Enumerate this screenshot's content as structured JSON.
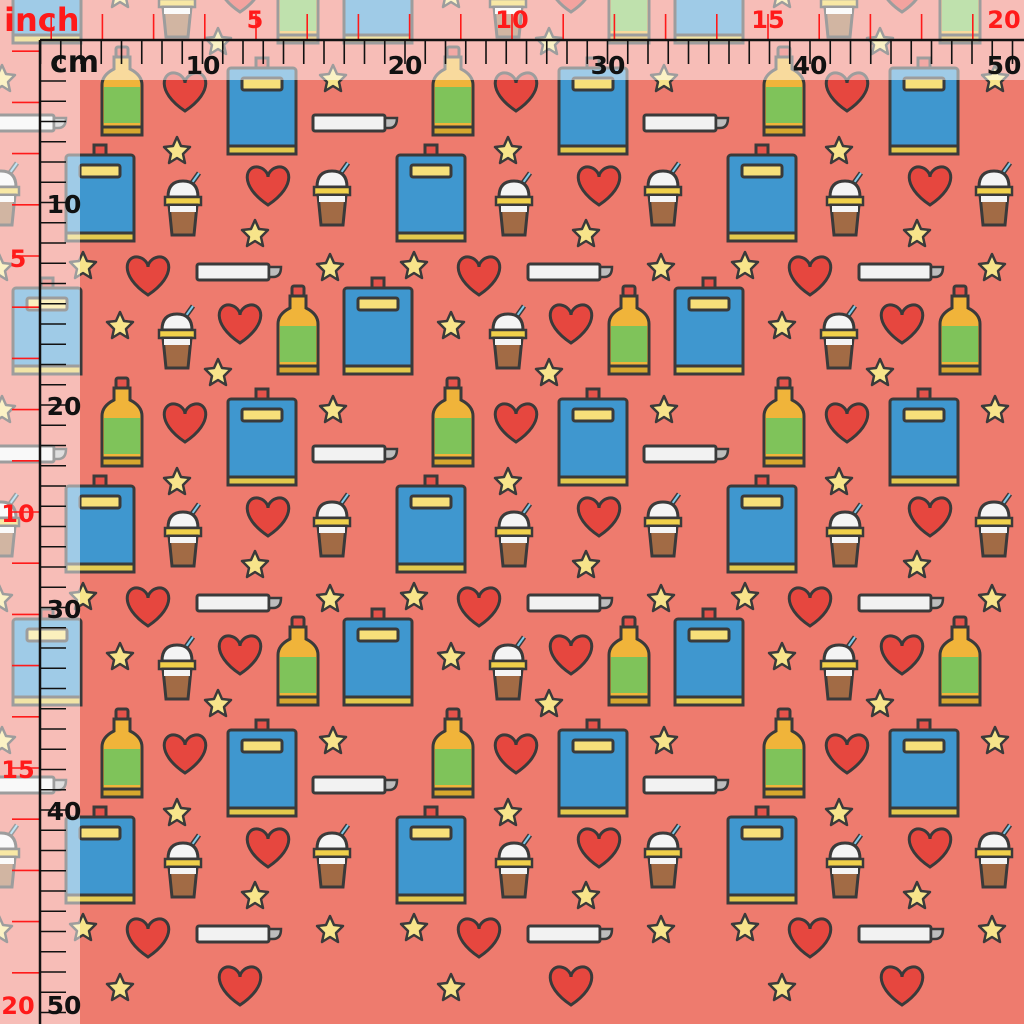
{
  "colors": {
    "fabric_background": "#ee7b6e",
    "jar_blue": "#3f97cf",
    "bottle_green": "#7fc35a",
    "bottle_amber": "#f0b43a",
    "heart_red": "#e6473f",
    "star_yellow": "#f7e48a",
    "outline": "#3a3a3a",
    "inch_red": "#ff1a1a",
    "cm_black": "#111111"
  },
  "ruler": {
    "inch_unit_label": "inch",
    "cm_unit_label": "cm",
    "top_inch_labels": [
      "5",
      "10",
      "15",
      "20"
    ],
    "top_cm_labels": [
      "10",
      "20",
      "30",
      "40",
      "50"
    ],
    "left_inch_labels": [
      "5",
      "10",
      "15",
      "20"
    ],
    "left_cm_labels": [
      "10",
      "20",
      "30",
      "40",
      "50"
    ]
  },
  "pattern": {
    "motifs": [
      "bottle-icon",
      "heart-icon",
      "jar-icon",
      "star-icon",
      "chalk-icon",
      "ice-cream-cup-icon"
    ]
  }
}
